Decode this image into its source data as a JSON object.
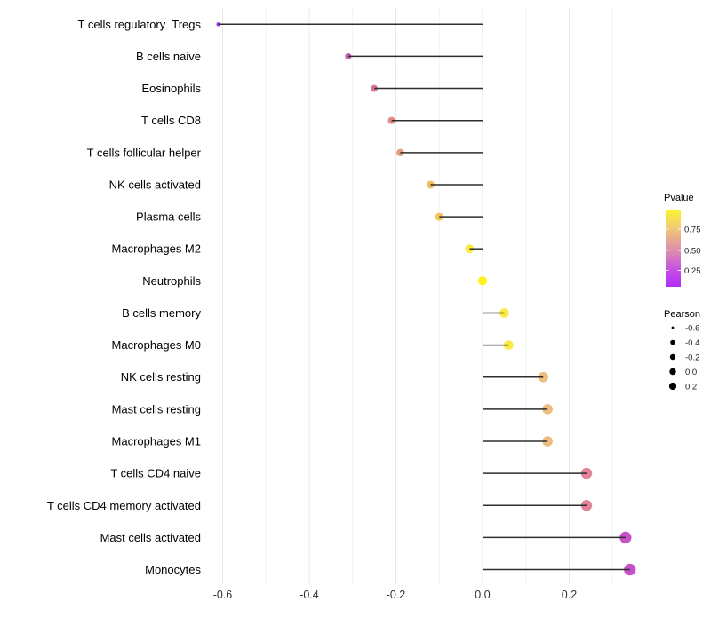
{
  "figure": {
    "background": "#ffffff",
    "grid_major_color": "#e9e9e9",
    "grid_minor_color": "#f4f4f4",
    "stem_color": "#2e2e2e",
    "axis_text_color": "#313131",
    "label_text_color": "#000000"
  },
  "chart_data": {
    "type": "lollipop",
    "orientation": "horizontal",
    "title": "",
    "xlabel": "",
    "ylabel": "",
    "xlim": [
      -0.66,
      0.39
    ],
    "x_ticks": [
      -0.6,
      -0.4,
      -0.2,
      0.0,
      0.2
    ],
    "x_tick_labels": [
      "-0.6",
      "-0.4",
      "-0.2",
      "0.0",
      "0.2"
    ],
    "x_minor_ticks": [
      -0.5,
      -0.3,
      -0.1,
      0.1,
      0.3
    ],
    "grid": "vertical major and minor gridlines only, white panel",
    "baseline_x": 0.0,
    "points": [
      {
        "category": "T cells regulatory  Tregs",
        "pearson": -0.61,
        "color": "#A336E8"
      },
      {
        "category": "B cells naive",
        "pearson": -0.31,
        "color": "#C75BB8"
      },
      {
        "category": "Eosinophils",
        "pearson": -0.25,
        "color": "#D5719F"
      },
      {
        "category": "T cells CD8",
        "pearson": -0.21,
        "color": "#E18A82"
      },
      {
        "category": "T cells follicular helper",
        "pearson": -0.19,
        "color": "#E69B79"
      },
      {
        "category": "NK cells activated",
        "pearson": -0.12,
        "color": "#EDBE62"
      },
      {
        "category": "Plasma cells",
        "pearson": -0.1,
        "color": "#F0C75A"
      },
      {
        "category": "Macrophages M2",
        "pearson": -0.03,
        "color": "#FBEC3F"
      },
      {
        "category": "Neutrophils",
        "pearson": 0.0,
        "color": "#FEF318"
      },
      {
        "category": "B cells memory",
        "pearson": 0.05,
        "color": "#FAEA43"
      },
      {
        "category": "Macrophages M0",
        "pearson": 0.06,
        "color": "#F9EA47"
      },
      {
        "category": "NK cells resting",
        "pearson": 0.14,
        "color": "#EEBC7E"
      },
      {
        "category": "Mast cells resting",
        "pearson": 0.15,
        "color": "#EEBC7E"
      },
      {
        "category": "Macrophages M1",
        "pearson": 0.15,
        "color": "#EEBC7E"
      },
      {
        "category": "T cells CD4 naive",
        "pearson": 0.24,
        "color": "#E28598"
      },
      {
        "category": "T cells CD4 memory activated",
        "pearson": 0.24,
        "color": "#E18396"
      },
      {
        "category": "Mast cells activated",
        "pearson": 0.33,
        "color": "#C752C8"
      },
      {
        "category": "Monocytes",
        "pearson": 0.34,
        "color": "#C650C8"
      }
    ],
    "legend_pvalue": {
      "title": "Pvalue",
      "tick_labels": [
        "0.75",
        "0.50",
        "0.25"
      ],
      "gradient_top_to_bottom": [
        "#FBF233",
        "#F2CE6E",
        "#E5A694",
        "#D77CBE",
        "#C44BE5",
        "#B02EF9"
      ]
    },
    "legend_pearson": {
      "title": "Pearson",
      "entries": [
        {
          "label": "-0.6",
          "radius": 1.4
        },
        {
          "label": "-0.4",
          "radius": 2.8
        },
        {
          "label": "-0.2",
          "radius": 3.2
        },
        {
          "label": "0.0",
          "radius": 3.7
        },
        {
          "label": "0.2",
          "radius": 4.1
        }
      ]
    }
  }
}
